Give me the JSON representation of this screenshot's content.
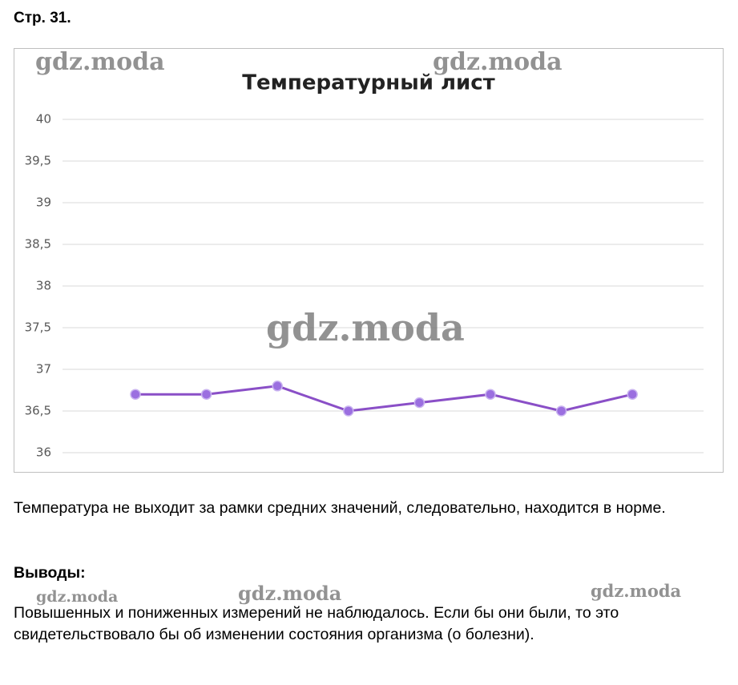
{
  "header": {
    "title": "Стр. 31."
  },
  "chart_data": {
    "type": "line",
    "title": "Температурный лист",
    "categories": [
      null,
      null,
      null,
      null,
      null,
      null,
      null,
      null
    ],
    "series": [
      {
        "name": null,
        "color": "#8a4fc7",
        "values": [
          36.7,
          36.7,
          36.8,
          36.5,
          36.6,
          36.7,
          36.5,
          36.7
        ]
      }
    ],
    "ylim": [
      36,
      40
    ],
    "yticks": [
      36,
      {
        "value": 36.5,
        "label": "36,5"
      },
      37,
      {
        "value": 37.5,
        "label": "37,5"
      },
      38,
      {
        "value": 38.5,
        "label": "38,5"
      },
      39,
      {
        "value": 39.5,
        "label": "39,5"
      },
      40
    ],
    "grid": true
  },
  "text": {
    "paragraph": "Температура не выходит за рамки средних значений, следовательно, находится в норме.",
    "conclusions_title": "Выводы:",
    "conclusions": "Повышенных и пониженных измерений не наблюдалось. Если бы они были, то это свидетельствовало бы об изменении состояния организма (о болезни)."
  },
  "watermarks": [
    "gdz.moda",
    "gdz.moda",
    "gdz.moda",
    "gdz.moda",
    "gdz.moda",
    "gdz.moda"
  ]
}
